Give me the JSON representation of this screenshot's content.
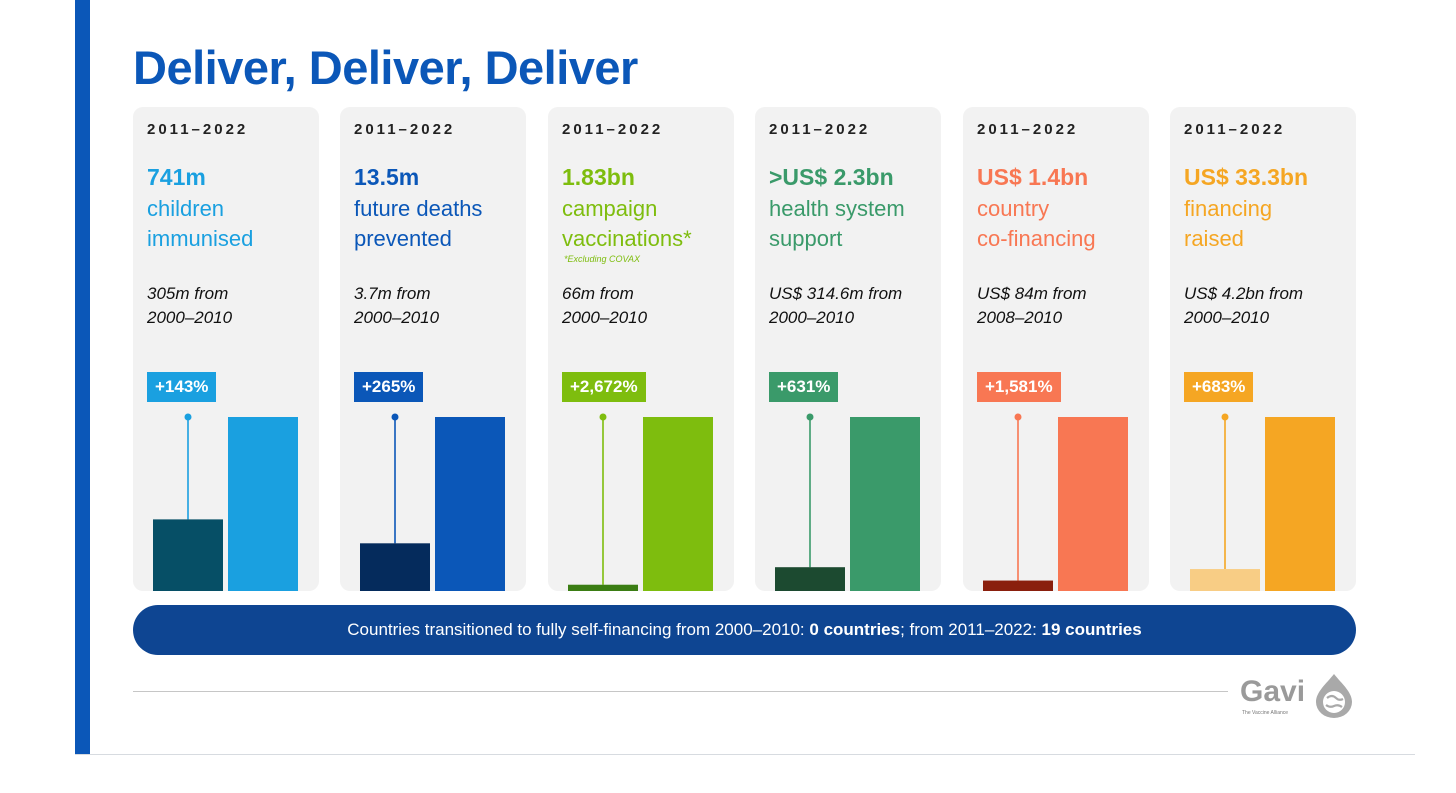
{
  "title": "Deliver, Deliver, Deliver",
  "panels": [
    {
      "period": "2011–2022",
      "headline": "741m",
      "desc1": "children",
      "desc2": "immunised",
      "footnote": "",
      "cmp1": "305m from",
      "cmp2": "2000–2010",
      "badge": "+143%",
      "color": "#1aa0e0",
      "dark": "#064f66"
    },
    {
      "period": "2011–2022",
      "headline": "13.5m",
      "desc1": "future deaths",
      "desc2": "prevented",
      "footnote": "",
      "cmp1": "3.7m from",
      "cmp2": "2000–2010",
      "badge": "+265%",
      "color": "#0b57b8",
      "dark": "#052b5c"
    },
    {
      "period": "2011–2022",
      "headline": "1.83bn",
      "desc1": "campaign",
      "desc2": "vaccinations*",
      "footnote": "*Excluding COVAX",
      "cmp1": "66m from",
      "cmp2": "2000–2010",
      "badge": "+2,672%",
      "color": "#7ebd0e",
      "dark": "#3b7d14"
    },
    {
      "period": "2011–2022",
      "headline": ">US$ 2.3bn",
      "desc1": "health system",
      "desc2": "support",
      "footnote": "",
      "cmp1": "US$ 314.6m from",
      "cmp2": "2000–2010",
      "badge": "+631%",
      "color": "#3a9a6a",
      "dark": "#1c4a30"
    },
    {
      "period": "2011–2022",
      "headline": "US$ 1.4bn",
      "desc1": "country",
      "desc2": "co-financing",
      "footnote": "",
      "cmp1": "US$ 84m from",
      "cmp2": "2008–2010",
      "badge": "+1,581%",
      "color": "#f87753",
      "dark": "#8a1f0d"
    },
    {
      "period": "2011–2022",
      "headline": "US$ 33.3bn",
      "desc1": "financing",
      "desc2": "raised",
      "footnote": "",
      "cmp1": "US$ 4.2bn from",
      "cmp2": "2000–2010",
      "badge": "+683%",
      "color": "#f5a623",
      "dark": "#f8cd85"
    }
  ],
  "chart_data": [
    {
      "type": "bar",
      "categories": [
        "2000–2010",
        "2011–2022"
      ],
      "values": [
        305,
        741
      ],
      "unit": "m",
      "annotation": "+143%"
    },
    {
      "type": "bar",
      "categories": [
        "2000–2010",
        "2011–2022"
      ],
      "values": [
        3.7,
        13.5
      ],
      "unit": "m",
      "annotation": "+265%"
    },
    {
      "type": "bar",
      "categories": [
        "2000–2010",
        "2011–2022"
      ],
      "values": [
        66,
        1830
      ],
      "unit": "m",
      "annotation": "+2,672%"
    },
    {
      "type": "bar",
      "categories": [
        "2000–2010",
        "2011–2022"
      ],
      "values": [
        314.6,
        2300
      ],
      "unit": "US$ m",
      "annotation": "+631%"
    },
    {
      "type": "bar",
      "categories": [
        "2008–2010",
        "2011–2022"
      ],
      "values": [
        84,
        1400
      ],
      "unit": "US$ m",
      "annotation": "+1,581%"
    },
    {
      "type": "bar",
      "categories": [
        "2000–2010",
        "2011–2022"
      ],
      "values": [
        4.2,
        33.3
      ],
      "unit": "US$ bn",
      "annotation": "+683%"
    }
  ],
  "banner": {
    "prefix": "Countries transitioned to fully self-financing from 2000–2010: ",
    "value1": "0 countries",
    "middle": "; from 2011–2022: ",
    "value2": "19 countries"
  },
  "logo": {
    "name": "Gavi",
    "tagline": "The Vaccine Alliance"
  }
}
